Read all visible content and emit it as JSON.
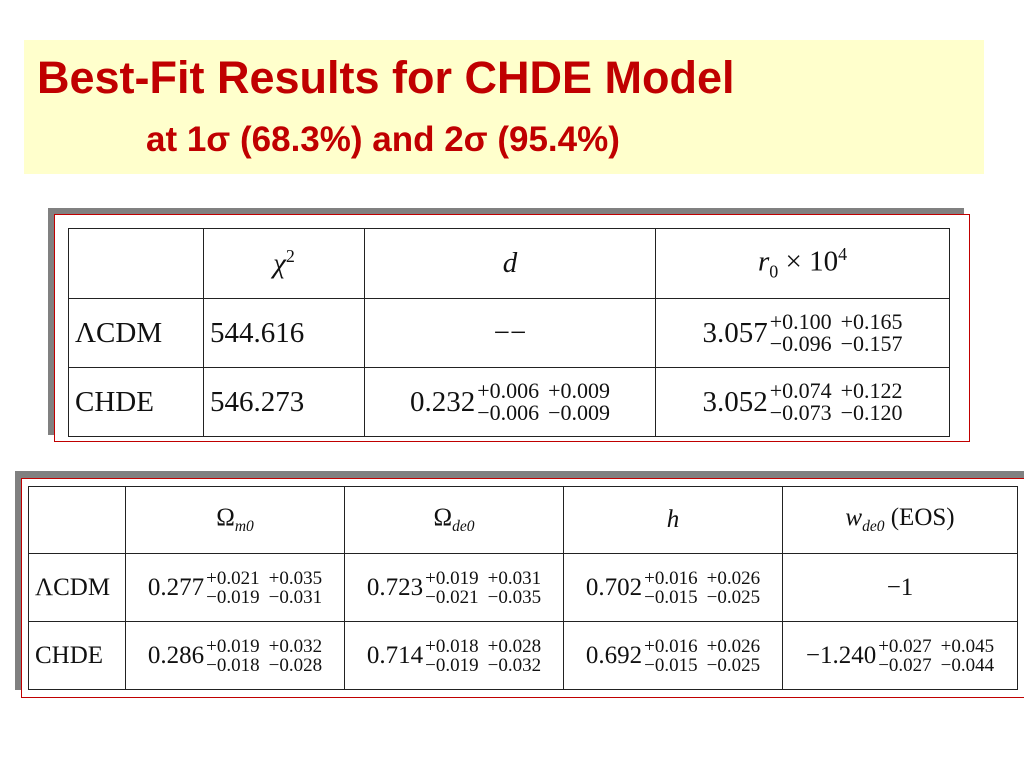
{
  "title": {
    "line1": "Best-Fit Results for CHDE Model",
    "line2": "at 1σ (68.3%) and 2σ (95.4%)"
  },
  "table1": {
    "headers": {
      "chi2_symbol": "χ",
      "chi2_sup": "2",
      "d": "d",
      "r0_symbol": "r",
      "r0_sub": "0",
      "r0_times": " × 10",
      "r0_sup": "4"
    },
    "rows": [
      {
        "label": "ΛCDM",
        "chi2": "544.616",
        "d": "−−",
        "r0": {
          "value": "3.057",
          "up1": "+0.100",
          "up2": "+0.165",
          "dn1": "−0.096",
          "dn2": "−0.157"
        }
      },
      {
        "label": "CHDE",
        "chi2": "546.273",
        "d": {
          "value": "0.232",
          "up1": "+0.006",
          "up2": "+0.009",
          "dn1": "−0.006",
          "dn2": "−0.009"
        },
        "r0": {
          "value": "3.052",
          "up1": "+0.074",
          "up2": "+0.122",
          "dn1": "−0.073",
          "dn2": "−0.120"
        }
      }
    ]
  },
  "table2": {
    "headers": {
      "om_symbol": "Ω",
      "om_sub": "m0",
      "ode_symbol": "Ω",
      "ode_sub": "de0",
      "h": "h",
      "w_symbol": "w",
      "w_sub": "de0",
      "w_suffix": " (EOS)"
    },
    "rows": [
      {
        "label": "ΛCDM",
        "om": {
          "value": "0.277",
          "up1": "+0.021",
          "up2": "+0.035",
          "dn1": "−0.019",
          "dn2": "−0.031"
        },
        "ode": {
          "value": "0.723",
          "up1": "+0.019",
          "up2": "+0.031",
          "dn1": "−0.021",
          "dn2": "−0.035"
        },
        "h": {
          "value": "0.702",
          "up1": "+0.016",
          "up2": "+0.026",
          "dn1": "−0.015",
          "dn2": "−0.025"
        },
        "w": "−1"
      },
      {
        "label": "CHDE",
        "om": {
          "value": "0.286",
          "up1": "+0.019",
          "up2": "+0.032",
          "dn1": "−0.018",
          "dn2": "−0.028"
        },
        "ode": {
          "value": "0.714",
          "up1": "+0.018",
          "up2": "+0.028",
          "dn1": "−0.019",
          "dn2": "−0.032"
        },
        "h": {
          "value": "0.692",
          "up1": "+0.016",
          "up2": "+0.026",
          "dn1": "−0.015",
          "dn2": "−0.025"
        },
        "w": {
          "value": "−1.240",
          "up1": "+0.027",
          "up2": "+0.045",
          "dn1": "−0.027",
          "dn2": "−0.044"
        }
      }
    ]
  }
}
